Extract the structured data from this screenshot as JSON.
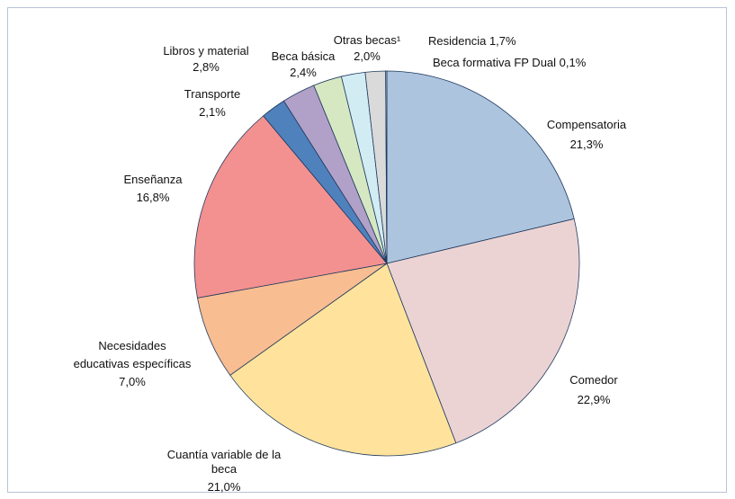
{
  "chart_data": {
    "type": "pie",
    "title": "",
    "start_angle_deg": 0,
    "direction": "clockwise",
    "slices": [
      {
        "label": "Compensatoria",
        "value": 21.3,
        "value_label": "21,3%",
        "color": "#adc4de"
      },
      {
        "label": "Comedor",
        "value": 22.9,
        "value_label": "22,9%",
        "color": "#ecd3d3"
      },
      {
        "label": "Cuantía variable de la beca",
        "value": 21.0,
        "value_label": "21,0%",
        "color": "#ffe39c"
      },
      {
        "label": "Necesidades educativas específicas",
        "value": 7.0,
        "value_label": "7,0%",
        "color": "#f8bd91"
      },
      {
        "label": "Enseñanza",
        "value": 16.8,
        "value_label": "16,8%",
        "color": "#f39190"
      },
      {
        "label": "Transporte",
        "value": 2.1,
        "value_label": "2,1%",
        "color": "#4f81bd"
      },
      {
        "label": "Libros y material",
        "value": 2.8,
        "value_label": "2,8%",
        "color": "#b1a0c7"
      },
      {
        "label": "Beca básica",
        "value": 2.4,
        "value_label": "2,4%",
        "color": "#d5e8c2"
      },
      {
        "label": "Otras becas¹",
        "value": 2.0,
        "value_label": "2,0%",
        "color": "#d2ecf3"
      },
      {
        "label": "Residencia",
        "value": 1.7,
        "value_label": "1,7%",
        "color": "#dadada"
      },
      {
        "label": "Beca formativa FP Dual",
        "value": 0.1,
        "value_label": "0,1%",
        "color": "#c9d4e6"
      }
    ]
  }
}
